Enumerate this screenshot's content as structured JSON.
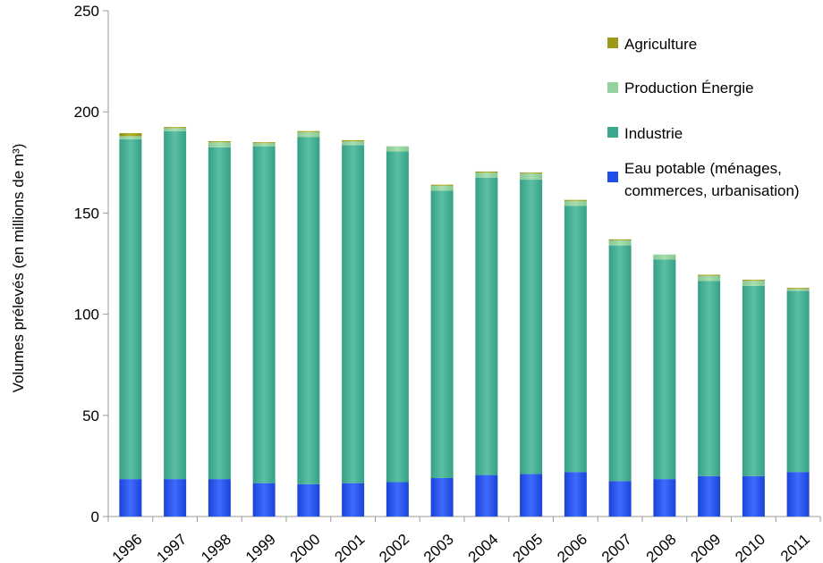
{
  "chart_data": {
    "type": "bar",
    "stacked": true,
    "categories": [
      "1996",
      "1997",
      "1998",
      "1999",
      "2000",
      "2001",
      "2002",
      "2003",
      "2004",
      "2005",
      "2006",
      "2007",
      "2008",
      "2009",
      "2010",
      "2011"
    ],
    "series": [
      {
        "name": "Eau potable (ménages, commerces, urbanisation)",
        "color": "#1f4fe8",
        "values": [
          18.5,
          18.5,
          18.5,
          16.5,
          16,
          16.5,
          17,
          19,
          20.5,
          21,
          22,
          17.5,
          18.5,
          20,
          20,
          22
        ]
      },
      {
        "name": "Industrie",
        "color": "#3aa88e",
        "values": [
          168,
          172,
          164,
          166.5,
          171.5,
          167,
          163.5,
          142,
          147,
          145.5,
          131.5,
          116.5,
          108.5,
          96.5,
          94,
          89.5
        ]
      },
      {
        "name": "Production Énergie",
        "color": "#93d39c",
        "values": [
          1.5,
          1.5,
          2.5,
          1.5,
          2.5,
          2,
          2.5,
          2.5,
          2.5,
          3,
          2.5,
          2.5,
          2.5,
          2.5,
          2.5,
          1
        ]
      },
      {
        "name": "Agriculture",
        "color": "#9c9a14",
        "values": [
          1.5,
          0.5,
          0.5,
          0.5,
          0.5,
          0.5,
          0,
          0.5,
          0.5,
          0.5,
          0.5,
          0.5,
          0,
          0.5,
          0.5,
          0.5
        ]
      }
    ],
    "ylabel": "Volumes prélevés (en millions de m³)",
    "ylim": [
      0,
      250
    ],
    "yticks": [
      "0",
      "50",
      "100",
      "150",
      "200",
      "250"
    ],
    "legend": {
      "placement": "top-right",
      "items": [
        {
          "label": "Agriculture",
          "color": "#9c9a14"
        },
        {
          "label": "Production Énergie",
          "color": "#93d39c"
        },
        {
          "label": "Industrie",
          "color": "#3aa88e"
        },
        {
          "label_line1": "Eau potable (ménages,",
          "label_line2": "commerces, urbanisation)",
          "color": "#1f4fe8"
        }
      ]
    },
    "grid": false
  }
}
